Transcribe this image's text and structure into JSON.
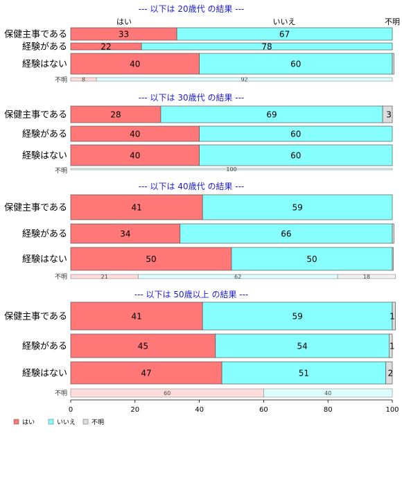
{
  "colors": {
    "yes": "#ff7777",
    "no": "#88ffff",
    "unknown": "#dddddd",
    "yes_light": "#ffdddd",
    "no_light": "#ddffff",
    "unknown_light": "#f2f2f2",
    "title": "#1a1adb"
  },
  "header_labels": [
    "はい",
    "いいえ",
    "不明"
  ],
  "chart_data": {
    "type": "bar",
    "orientation": "horizontal",
    "stacked": true,
    "xlim": [
      0,
      100
    ],
    "xticks": [
      0,
      20,
      40,
      60,
      80,
      100
    ],
    "series_names": [
      "はい",
      "いいえ",
      "不明"
    ],
    "legend_position": "bottom-left",
    "panels": [
      {
        "title": "--- 以下は 20歳代 の結果 ---",
        "categories": [
          "保健主事である",
          "経験がある",
          "経験はない"
        ],
        "rows": [
          {
            "values": [
              33,
              67,
              0
            ],
            "labels": [
              "33",
              "67",
              ""
            ]
          },
          {
            "values": [
              22,
              78,
              0
            ],
            "labels": [
              "22",
              "78",
              ""
            ]
          },
          {
            "values": [
              40,
              60,
              0.5
            ],
            "labels": [
              "40",
              "60",
              ""
            ]
          }
        ],
        "unknown_label": "不明",
        "unknown_bar": {
          "values": [
            8,
            92,
            0
          ],
          "labels": [
            "8",
            "92",
            ""
          ]
        }
      },
      {
        "title": "--- 以下は 30歳代 の結果 ---",
        "categories": [
          "保健主事である",
          "経験がある",
          "経験はない"
        ],
        "rows": [
          {
            "values": [
              28,
              69,
              3
            ],
            "labels": [
              "28",
              "69",
              "3"
            ]
          },
          {
            "values": [
              40,
              60,
              0
            ],
            "labels": [
              "40",
              "60",
              ""
            ]
          },
          {
            "values": [
              40,
              60,
              0
            ],
            "labels": [
              "40",
              "60",
              ""
            ]
          }
        ],
        "unknown_label": "不明",
        "unknown_bar": {
          "values": [
            0,
            100,
            0
          ],
          "labels": [
            "",
            "100",
            ""
          ]
        }
      },
      {
        "title": "--- 以下は 40歳代 の結果 ---",
        "categories": [
          "保健主事である",
          "経験がある",
          "経験はない"
        ],
        "rows": [
          {
            "values": [
              41,
              59,
              0
            ],
            "labels": [
              "41",
              "59",
              ""
            ]
          },
          {
            "values": [
              34,
              66,
              0.5
            ],
            "labels": [
              "34",
              "66",
              ""
            ]
          },
          {
            "values": [
              50,
              50,
              0.3
            ],
            "labels": [
              "50",
              "50",
              ""
            ]
          }
        ],
        "unknown_label": "不明",
        "unknown_bar": {
          "values": [
            21,
            62,
            18
          ],
          "labels": [
            "21",
            "62",
            "18"
          ]
        }
      },
      {
        "title": "--- 以下は 50歳以上 の結果 ---",
        "categories": [
          "保健主事である",
          "経験がある",
          "経験はない"
        ],
        "rows": [
          {
            "values": [
              41,
              59,
              1
            ],
            "labels": [
              "41",
              "59",
              "1"
            ]
          },
          {
            "values": [
              45,
              54,
              1
            ],
            "labels": [
              "45",
              "54",
              "1"
            ]
          },
          {
            "values": [
              47,
              51,
              2
            ],
            "labels": [
              "47",
              "51",
              "2"
            ]
          }
        ],
        "unknown_label": "不明",
        "unknown_bar": {
          "values": [
            60,
            40,
            0
          ],
          "labels": [
            "60",
            "40",
            ""
          ]
        }
      }
    ]
  }
}
